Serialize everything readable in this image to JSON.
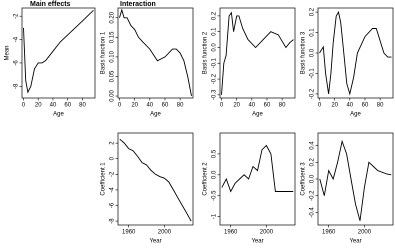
{
  "chart_data": [
    {
      "type": "line",
      "title": "Main effects",
      "x_label": "Age",
      "y_label": "Mean",
      "x": [
        0,
        3,
        6,
        10,
        15,
        20,
        25,
        30,
        40,
        50,
        60,
        70,
        80,
        90,
        95
      ],
      "values": [
        -3,
        -7.5,
        -8.5,
        -8,
        -6.5,
        -6,
        -6,
        -5.8,
        -5,
        -4.2,
        -3.6,
        -3,
        -2.4,
        -1.8,
        -1.5
      ],
      "xlim": [
        -2,
        97
      ],
      "ylim": [
        -9,
        -1.3
      ],
      "xticks": [
        0,
        20,
        40,
        60,
        80
      ],
      "yticks": [
        -8,
        -6,
        -4,
        -2
      ]
    },
    {
      "type": "line",
      "title": "Interaction",
      "x_label": "Age",
      "y_label": "Basis function 1",
      "x": [
        0,
        3,
        6,
        10,
        15,
        20,
        25,
        30,
        40,
        50,
        60,
        70,
        75,
        80,
        85,
        90,
        95
      ],
      "values": [
        0.2,
        0.22,
        0.2,
        0.2,
        0.18,
        0.17,
        0.15,
        0.14,
        0.12,
        0.09,
        0.1,
        0.12,
        0.12,
        0.11,
        0.09,
        0.05,
        0.0
      ],
      "xlim": [
        -2,
        97
      ],
      "ylim": [
        -0.005,
        0.225
      ],
      "xticks": [
        0,
        20,
        40,
        60,
        80
      ],
      "yticks": [
        {
          "value": 0,
          "label": "0.00"
        },
        {
          "value": 0.05,
          "label": "0.05"
        },
        {
          "value": 0.1,
          "label": "0.10"
        },
        {
          "value": 0.15,
          "label": "0.15"
        },
        {
          "value": 0.2,
          "label": "0.20"
        }
      ]
    },
    {
      "type": "line",
      "x_label": "Age",
      "y_label": "Basis function 2",
      "x": [
        0,
        3,
        6,
        10,
        13,
        16,
        20,
        23,
        28,
        35,
        45,
        55,
        65,
        75,
        85,
        90,
        95
      ],
      "values": [
        -0.3,
        -0.1,
        -0.05,
        0.2,
        0.22,
        0.1,
        0.2,
        0.2,
        0.12,
        0.05,
        0.0,
        0.05,
        0.1,
        0.08,
        0.0,
        0.03,
        0.05
      ],
      "xlim": [
        -2,
        97
      ],
      "ylim": [
        -0.32,
        0.25
      ],
      "xticks": [
        0,
        20,
        40,
        60,
        80
      ],
      "yticks": [
        -0.3,
        -0.2,
        -0.1,
        {
          "value": 0,
          "label": "0.0"
        },
        0.1,
        0.2
      ]
    },
    {
      "type": "line",
      "x_label": "Age",
      "y_label": "Basis function 3",
      "x": [
        0,
        5,
        8,
        12,
        15,
        18,
        22,
        25,
        28,
        32,
        36,
        40,
        45,
        50,
        60,
        70,
        75,
        85,
        90,
        95
      ],
      "values": [
        0.0,
        0.03,
        -0.1,
        -0.2,
        -0.1,
        0.05,
        0.18,
        0.2,
        0.15,
        0.0,
        -0.15,
        -0.2,
        -0.12,
        0.0,
        0.08,
        0.12,
        0.12,
        0.0,
        -0.02,
        -0.02
      ],
      "xlim": [
        -2,
        97
      ],
      "ylim": [
        -0.22,
        0.22
      ],
      "xticks": [
        0,
        20,
        40,
        60,
        80
      ],
      "yticks": [
        -0.2,
        -0.1,
        {
          "value": 0,
          "label": "0.0"
        },
        0.1,
        0.2
      ]
    },
    {
      "type": "line",
      "x_label": "Year",
      "y_label": "Coefficient 1",
      "x": [
        1950,
        1955,
        1960,
        1965,
        1970,
        1975,
        1980,
        1985,
        1990,
        1995,
        2000,
        2005,
        2010,
        2015,
        2020,
        2025,
        2030
      ],
      "values": [
        2.5,
        2,
        1.3,
        1,
        0.3,
        -0.5,
        -0.8,
        -1.5,
        -2,
        -2.3,
        -2.5,
        -3,
        -4,
        -5,
        -6,
        -7,
        -8
      ],
      "xlim": [
        1948,
        2032
      ],
      "ylim": [
        -8.5,
        3.3
      ],
      "xticks": [
        1960,
        2000
      ],
      "yticks": [
        -8,
        -6,
        -4,
        -2,
        0,
        2
      ]
    },
    {
      "type": "line",
      "x_label": "Year",
      "y_label": "Coefficient 2",
      "x": [
        1950,
        1955,
        1960,
        1965,
        1970,
        1975,
        1980,
        1985,
        1990,
        1995,
        2000,
        2005,
        2010,
        2015,
        2020,
        2025,
        2030
      ],
      "values": [
        -0.3,
        -0.1,
        -0.4,
        -0.2,
        -0.1,
        0.0,
        -0.1,
        0.2,
        0.1,
        0.6,
        0.7,
        0.5,
        -0.4,
        -0.4,
        -0.4,
        -0.4,
        -0.4
      ],
      "xlim": [
        1948,
        2032
      ],
      "ylim": [
        -1.2,
        1.0
      ],
      "xticks": [
        1960,
        2000
      ],
      "yticks": [
        -1.0,
        -0.5,
        {
          "value": 0,
          "label": "0.0"
        },
        0.5
      ]
    },
    {
      "type": "line",
      "x_label": "Year",
      "y_label": "Coefficient 3",
      "x": [
        1950,
        1955,
        1960,
        1965,
        1970,
        1975,
        1980,
        1985,
        1990,
        1995,
        2000,
        2005,
        2010,
        2015,
        2020,
        2025,
        2030
      ],
      "values": [
        0.0,
        -0.2,
        0.1,
        0.0,
        0.2,
        0.45,
        0.3,
        0.0,
        -0.3,
        -0.5,
        -0.1,
        0.2,
        0.15,
        0.1,
        0.08,
        0.06,
        0.05
      ],
      "xlim": [
        1948,
        2032
      ],
      "ylim": [
        -0.55,
        0.55
      ],
      "xticks": [
        1960,
        2000
      ],
      "yticks": [
        -0.4,
        -0.2,
        {
          "value": 0,
          "label": "0.0"
        },
        0.2,
        0.4
      ]
    }
  ]
}
